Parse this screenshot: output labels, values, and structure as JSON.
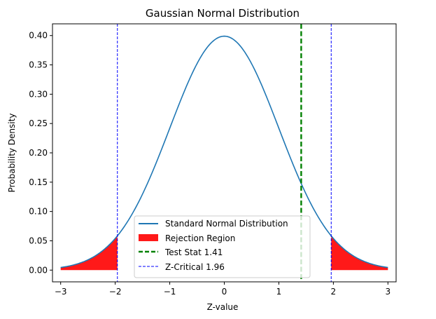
{
  "chart_data": {
    "type": "line",
    "title": "Gaussian Normal Distribution",
    "xlabel": "Z-value",
    "ylabel": "Probability Density",
    "xlim": [
      -3.15,
      3.15
    ],
    "ylim": [
      -0.02,
      0.42
    ],
    "x_ticks": [
      "−3",
      "−2",
      "−1",
      "0",
      "1",
      "2",
      "3"
    ],
    "x_tick_values": [
      -3,
      -2,
      -1,
      0,
      1,
      2,
      3
    ],
    "y_ticks": [
      "0.00",
      "0.05",
      "0.10",
      "0.15",
      "0.20",
      "0.25",
      "0.30",
      "0.35",
      "0.40"
    ],
    "y_tick_values": [
      0,
      0.05,
      0.1,
      0.15,
      0.2,
      0.25,
      0.3,
      0.35,
      0.4
    ],
    "grid": false,
    "legend_position": "lower-center",
    "curve": {
      "name": "Standard Normal Distribution",
      "color": "#1f77b4",
      "x_range": [
        -3,
        3
      ],
      "distribution": "standard normal pdf"
    },
    "rejection_region": {
      "name": "Rejection Region",
      "color": "#ff0000",
      "left_interval": [
        -3,
        -1.96
      ],
      "right_interval": [
        1.96,
        3
      ]
    },
    "test_stat": {
      "name": "Test Stat 1.41",
      "value": 1.41,
      "color": "#008000",
      "linestyle": "dashed"
    },
    "z_critical": {
      "name": "Z-Critical 1.96",
      "values": [
        -1.96,
        1.96
      ],
      "color": "#0000ff",
      "linestyle": "dashed"
    }
  }
}
